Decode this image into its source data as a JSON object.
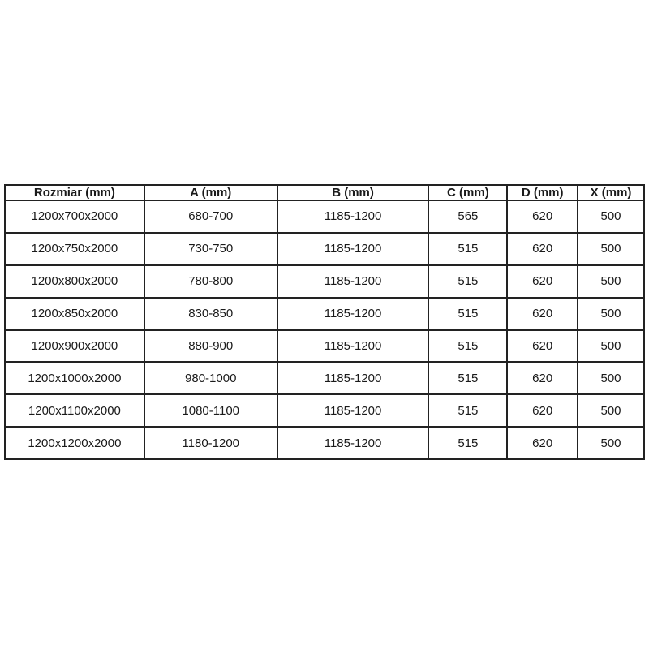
{
  "page": {
    "background_color": "#ffffff",
    "text_color": "#1a1a1a",
    "border_color": "#222222"
  },
  "table": {
    "headers": [
      "Rozmiar (mm)",
      "A (mm)",
      "B (mm)",
      "C (mm)",
      "D (mm)",
      "X (mm)"
    ],
    "rows": [
      [
        "1200x700x2000",
        "680-700",
        "1185-1200",
        "565",
        "620",
        "500"
      ],
      [
        "1200x750x2000",
        "730-750",
        "1185-1200",
        "515",
        "620",
        "500"
      ],
      [
        "1200x800x2000",
        "780-800",
        "1185-1200",
        "515",
        "620",
        "500"
      ],
      [
        "1200x850x2000",
        "830-850",
        "1185-1200",
        "515",
        "620",
        "500"
      ],
      [
        "1200x900x2000",
        "880-900",
        "1185-1200",
        "515",
        "620",
        "500"
      ],
      [
        "1200x1000x2000",
        "980-1000",
        "1185-1200",
        "515",
        "620",
        "500"
      ],
      [
        "1200x1100x2000",
        "1080-1100",
        "1185-1200",
        "515",
        "620",
        "500"
      ],
      [
        "1200x1200x2000",
        "1180-1200",
        "1185-1200",
        "515",
        "620",
        "500"
      ]
    ]
  }
}
